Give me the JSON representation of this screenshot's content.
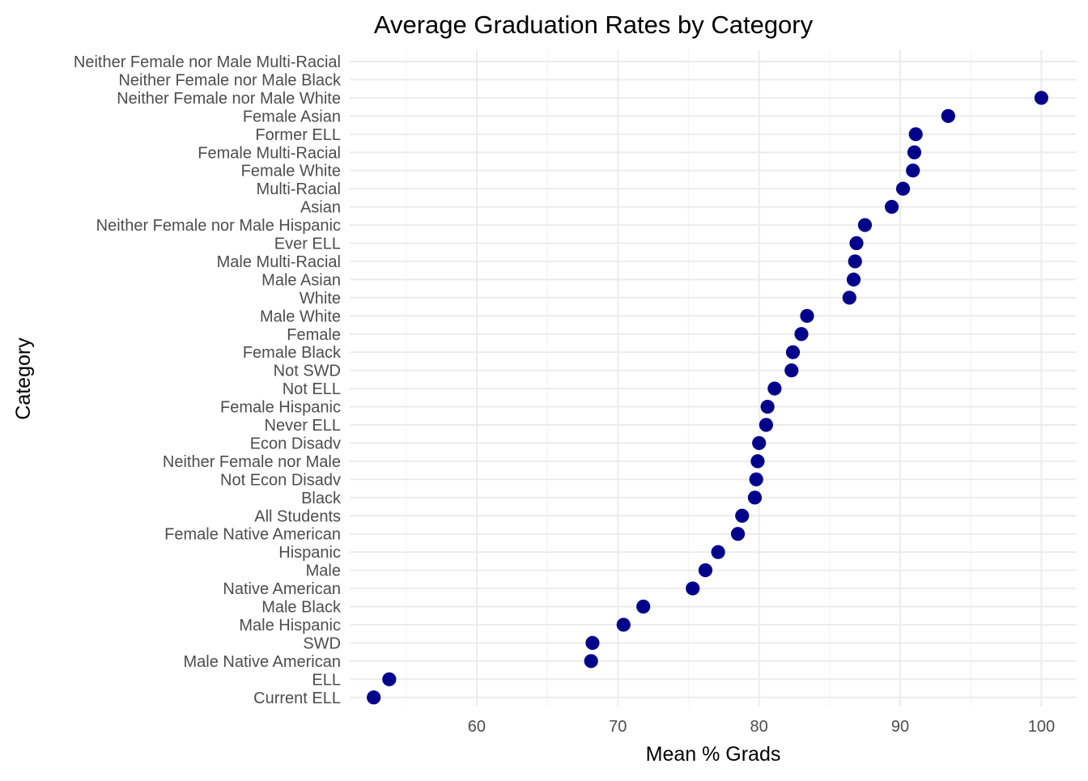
{
  "colors": {
    "point": "#00008B",
    "grid_major": "#ebebeb",
    "grid_minor": "#f3f3f3",
    "background": "#ffffff"
  },
  "chart_data": {
    "type": "scatter",
    "title": "Average Graduation Rates by Category",
    "xlabel": "Mean % Grads",
    "ylabel": "Category",
    "xlim": [
      51.0,
      102.5
    ],
    "xticks": [
      60,
      70,
      80,
      90,
      100
    ],
    "grid": true,
    "legend": "none",
    "points": [
      {
        "category": "Neither Female nor Male Multi-Racial",
        "value": null
      },
      {
        "category": "Neither Female nor Male Black",
        "value": null
      },
      {
        "category": "Neither Female nor Male White",
        "value": 100.0
      },
      {
        "category": "Female Asian",
        "value": 93.4
      },
      {
        "category": "Former ELL",
        "value": 91.1
      },
      {
        "category": "Female Multi-Racial",
        "value": 91.0
      },
      {
        "category": "Female White",
        "value": 90.9
      },
      {
        "category": "Multi-Racial",
        "value": 90.2
      },
      {
        "category": "Asian",
        "value": 89.4
      },
      {
        "category": "Neither Female nor Male Hispanic",
        "value": 87.5
      },
      {
        "category": "Ever ELL",
        "value": 86.9
      },
      {
        "category": "Male Multi-Racial",
        "value": 86.8
      },
      {
        "category": "Male Asian",
        "value": 86.7
      },
      {
        "category": "White",
        "value": 86.4
      },
      {
        "category": "Male White",
        "value": 83.4
      },
      {
        "category": "Female",
        "value": 83.0
      },
      {
        "category": "Female Black",
        "value": 82.4
      },
      {
        "category": "Not SWD",
        "value": 82.3
      },
      {
        "category": "Not ELL",
        "value": 81.1
      },
      {
        "category": "Female Hispanic",
        "value": 80.6
      },
      {
        "category": "Never ELL",
        "value": 80.5
      },
      {
        "category": "Econ Disadv",
        "value": 80.0
      },
      {
        "category": "Neither Female nor Male",
        "value": 79.9
      },
      {
        "category": "Not Econ Disadv",
        "value": 79.8
      },
      {
        "category": "Black",
        "value": 79.7
      },
      {
        "category": "All Students",
        "value": 78.8
      },
      {
        "category": "Female Native American",
        "value": 78.5
      },
      {
        "category": "Hispanic",
        "value": 77.1
      },
      {
        "category": "Male",
        "value": 76.2
      },
      {
        "category": "Native American",
        "value": 75.3
      },
      {
        "category": "Male Black",
        "value": 71.8
      },
      {
        "category": "Male Hispanic",
        "value": 70.4
      },
      {
        "category": "SWD",
        "value": 68.2
      },
      {
        "category": "Male Native American",
        "value": 68.1
      },
      {
        "category": "ELL",
        "value": 53.8
      },
      {
        "category": "Current ELL",
        "value": 52.7
      }
    ]
  }
}
